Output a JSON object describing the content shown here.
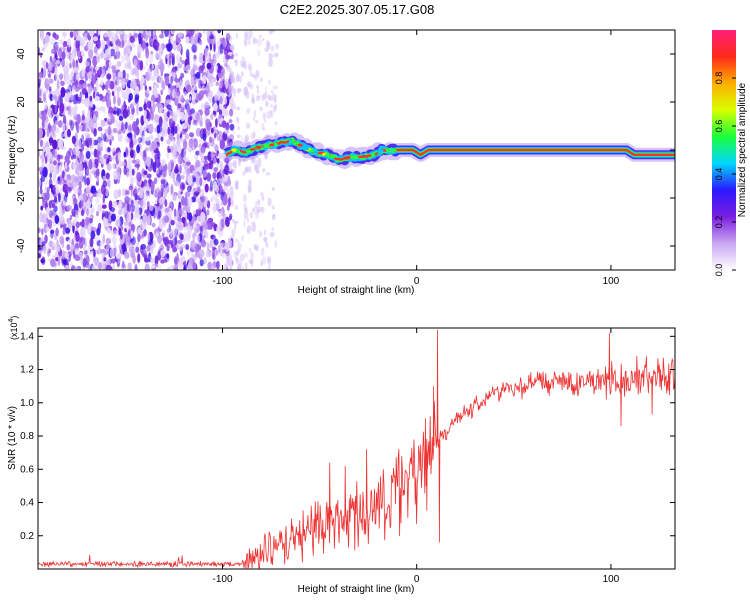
{
  "title": "C2E2.2025.307.05.17.G08",
  "chart_data": [
    {
      "type": "heatmap",
      "name": "spectrogram",
      "xlabel": "Height of straight line (km)",
      "ylabel": "Frequency (Hz)",
      "xlim": [
        -195,
        133
      ],
      "ylim": [
        -50,
        50
      ],
      "xticks": [
        -100,
        0,
        100
      ],
      "yticks": [
        -40,
        -20,
        0,
        20,
        40
      ],
      "colorbar": {
        "label": "Normalized spectral amplitude",
        "range": [
          0,
          1
        ],
        "ticks": [
          "0.0",
          "0.2",
          "0.4",
          "0.6",
          "0.8"
        ],
        "tick_values": [
          0.0,
          0.2,
          0.4,
          0.6,
          0.8
        ],
        "colors": [
          "#ffffff",
          "#c9a6f2",
          "#7a1fe0",
          "#2b18ff",
          "#00d7ff",
          "#1bff3a",
          "#d9ff00",
          "#ffae00",
          "#ff2a1a",
          "#ff1f7a"
        ]
      },
      "noise_region_km": [
        -195,
        -95
      ],
      "line_trace": {
        "x": [
          -98,
          -94,
          -88,
          -82,
          -76,
          -70,
          -64,
          -58,
          -52,
          -46,
          -40,
          -34,
          -28,
          -22,
          -18,
          -14,
          -10,
          -6,
          -2,
          2,
          6,
          10,
          20,
          40,
          60,
          80,
          100,
          108,
          112,
          120,
          128,
          133
        ],
        "y": [
          -2,
          0,
          -1,
          1,
          2,
          3,
          4,
          1,
          -1,
          -2,
          -4,
          -3,
          -3,
          -2,
          0,
          0,
          0,
          0,
          0,
          -2,
          0,
          0,
          0,
          0,
          0,
          0,
          0,
          0,
          -2,
          -2,
          -2,
          -2
        ]
      }
    },
    {
      "type": "line",
      "name": "snr",
      "xlabel": "Height of straight line (km)",
      "ylabel": "SNR (10 * v/v)",
      "y_multiplier": "(x10",
      "y_multiplier_exp": "4",
      "xlim": [
        -195,
        133
      ],
      "ylim": [
        0,
        1.45
      ],
      "xticks": [
        -100,
        0,
        100
      ],
      "yticks": [
        0.2,
        0.4,
        0.6,
        0.8,
        1.0,
        1.2,
        1.4
      ],
      "ytick_labels": [
        "0.2",
        "0.4",
        "0.6",
        "0.8",
        "1.0",
        "1.2",
        "1.4"
      ],
      "color": "#ee3333",
      "envelope": {
        "x": [
          -195,
          -90,
          -80,
          -70,
          -60,
          -50,
          -40,
          -30,
          -20,
          -10,
          -5,
          0,
          5,
          10,
          15,
          20,
          25,
          30,
          40,
          50,
          60,
          70,
          80,
          90,
          100,
          110,
          120,
          133
        ],
        "y": [
          0.03,
          0.03,
          0.09,
          0.14,
          0.2,
          0.26,
          0.3,
          0.34,
          0.38,
          0.46,
          0.52,
          0.62,
          0.7,
          0.76,
          0.82,
          0.89,
          0.94,
          0.99,
          1.06,
          1.09,
          1.11,
          1.12,
          1.12,
          1.13,
          1.14,
          1.15,
          1.16,
          1.16
        ]
      },
      "spikes": [
        {
          "x": 10.5,
          "y": 1.44
        },
        {
          "x": 11.5,
          "y": 0.16
        },
        {
          "x": 8.5,
          "y": 1.1
        },
        {
          "x": 5.0,
          "y": 0.35
        },
        {
          "x": -45,
          "y": 0.64
        },
        {
          "x": -37,
          "y": 0.62
        },
        {
          "x": -26,
          "y": 0.72
        },
        {
          "x": 99,
          "y": 1.42
        },
        {
          "x": 105,
          "y": 0.86
        },
        {
          "x": 121,
          "y": 0.93
        }
      ]
    }
  ]
}
